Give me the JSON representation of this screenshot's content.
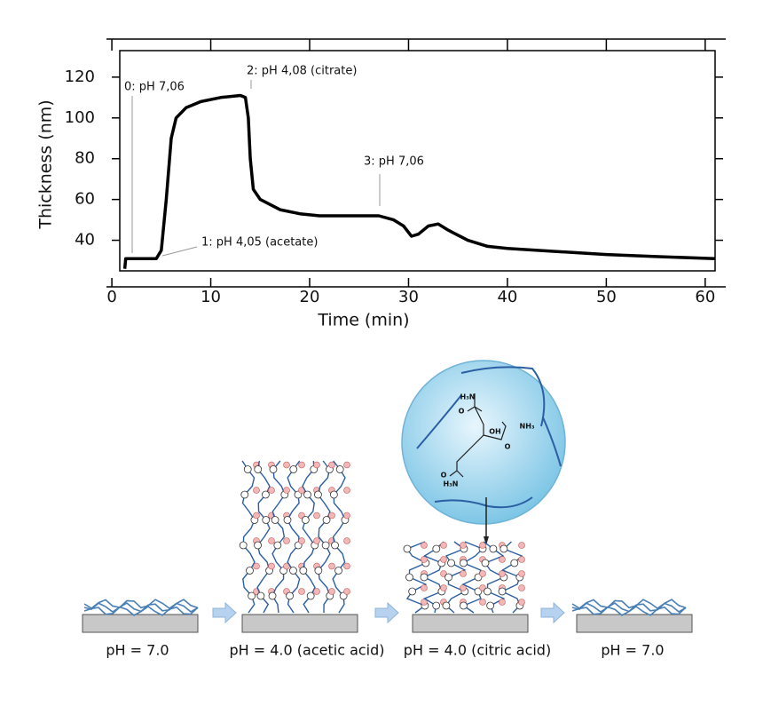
{
  "chart_data": {
    "type": "line",
    "x_label": "Time (min)",
    "y_label": "Thickness (nm)",
    "x": [
      1.3,
      1.4,
      4.5,
      5.0,
      5.5,
      6.0,
      6.5,
      7.5,
      9.0,
      11.0,
      13.0,
      13.5,
      13.8,
      14.0,
      14.3,
      15.0,
      17.0,
      19.0,
      21.0,
      27.0,
      28.5,
      29.5,
      30.3,
      31.0,
      32.0,
      33.0,
      34.0,
      36.0,
      38.0,
      40.0,
      45.0,
      50.0,
      55.0,
      61.0
    ],
    "values": [
      26,
      31,
      31,
      35,
      60,
      90,
      100,
      105,
      108,
      110,
      111,
      110,
      100,
      80,
      65,
      60,
      55,
      53,
      52,
      52,
      50,
      47,
      42,
      43,
      47,
      48,
      45,
      40,
      37,
      36,
      34.5,
      33,
      32,
      31
    ],
    "color": "#000000",
    "xlim": [
      0.8,
      61
    ],
    "ylim": [
      25,
      133
    ],
    "xticks": [
      0,
      10,
      20,
      30,
      40,
      50,
      60
    ],
    "yticks": [
      40,
      60,
      80,
      100,
      120
    ],
    "annotations": [
      "0: pH 7,06",
      "1:  pH 4,05 (acetate)",
      "2: pH 4,08 (citrate)",
      "3: pH 7,06"
    ]
  },
  "diagram": {
    "stages": [
      "pH = 7.0",
      "pH = 4.0 (acetic acid)",
      "pH = 4.0 (citric acid)",
      "pH = 7.0"
    ],
    "chem_labels": [
      "H₃N",
      "O",
      "NH₃",
      "OH",
      "O",
      "O",
      "H₃N"
    ]
  }
}
